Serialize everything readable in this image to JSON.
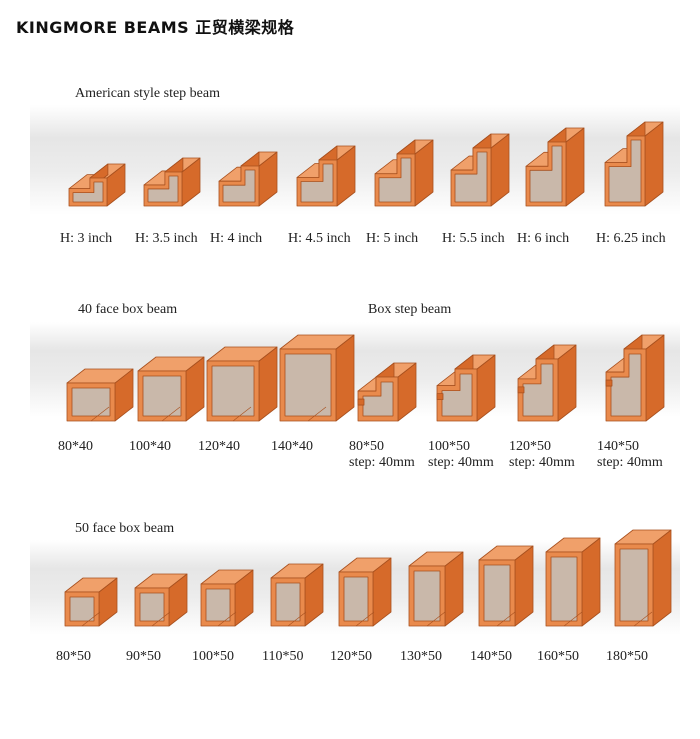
{
  "header": {
    "title": "KINGMORE BEAMS  正贸横梁规格"
  },
  "colors": {
    "face": "#e98a4c",
    "side": "#d66a2a",
    "top": "#f0a06a",
    "inner": "#c9b8aa",
    "edge": "#a8501e"
  },
  "sections": [
    {
      "title": "American style step beam",
      "profile": "step",
      "items": [
        {
          "label": "H: 3 inch",
          "sub": ""
        },
        {
          "label": "H: 3.5 inch",
          "sub": ""
        },
        {
          "label": "H: 4 inch",
          "sub": ""
        },
        {
          "label": "H: 4.5 inch",
          "sub": ""
        },
        {
          "label": "H: 5 inch",
          "sub": ""
        },
        {
          "label": "H: 5.5 inch",
          "sub": ""
        },
        {
          "label": "H: 6 inch",
          "sub": ""
        },
        {
          "label": "H: 6.25 inch",
          "sub": ""
        }
      ]
    },
    {
      "title": "40 face box beam",
      "profile": "box",
      "items": [
        {
          "label": "80*40",
          "sub": ""
        },
        {
          "label": "100*40",
          "sub": ""
        },
        {
          "label": "120*40",
          "sub": ""
        },
        {
          "label": "140*40",
          "sub": ""
        }
      ]
    },
    {
      "title": "Box step beam",
      "profile": "boxstep",
      "items": [
        {
          "label": "80*50",
          "sub": "step: 40mm"
        },
        {
          "label": "100*50",
          "sub": "step: 40mm"
        },
        {
          "label": "120*50",
          "sub": "step: 40mm"
        },
        {
          "label": "140*50",
          "sub": "step: 40mm"
        }
      ]
    },
    {
      "title": "50 face box beam",
      "profile": "box",
      "items": [
        {
          "label": "80*50",
          "sub": ""
        },
        {
          "label": "90*50",
          "sub": ""
        },
        {
          "label": "100*50",
          "sub": ""
        },
        {
          "label": "110*50",
          "sub": ""
        },
        {
          "label": "120*50",
          "sub": ""
        },
        {
          "label": "130*50",
          "sub": ""
        },
        {
          "label": "140*50",
          "sub": ""
        },
        {
          "label": "160*50",
          "sub": ""
        },
        {
          "label": "180*50",
          "sub": ""
        }
      ]
    }
  ]
}
